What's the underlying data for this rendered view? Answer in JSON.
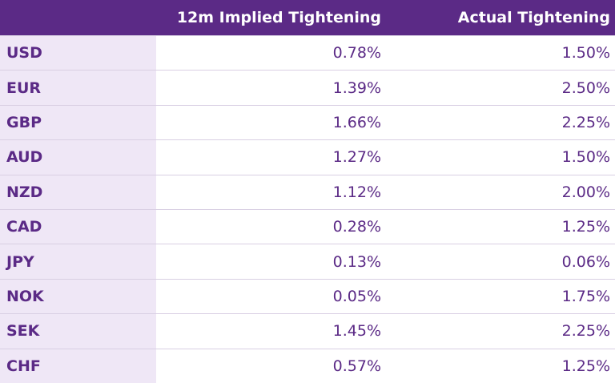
{
  "table": {
    "columns": [
      "12m Implied Tightening",
      "Actual Tightening"
    ],
    "rows": [
      [
        "USD",
        "0.78%",
        "1.50%"
      ],
      [
        "EUR",
        "1.39%",
        "2.50%"
      ],
      [
        "GBP",
        "1.66%",
        "2.25%"
      ],
      [
        "AUD",
        "1.27%",
        "1.50%"
      ],
      [
        "NZD",
        "1.12%",
        "2.00%"
      ],
      [
        "CAD",
        "0.28%",
        "1.25%"
      ],
      [
        "JPY",
        "0.13%",
        "0.06%"
      ],
      [
        "NOK",
        "0.05%",
        "1.75%"
      ],
      [
        "SEK",
        "1.45%",
        "2.25%"
      ],
      [
        "CHF",
        "0.57%",
        "1.25%"
      ]
    ]
  }
}
